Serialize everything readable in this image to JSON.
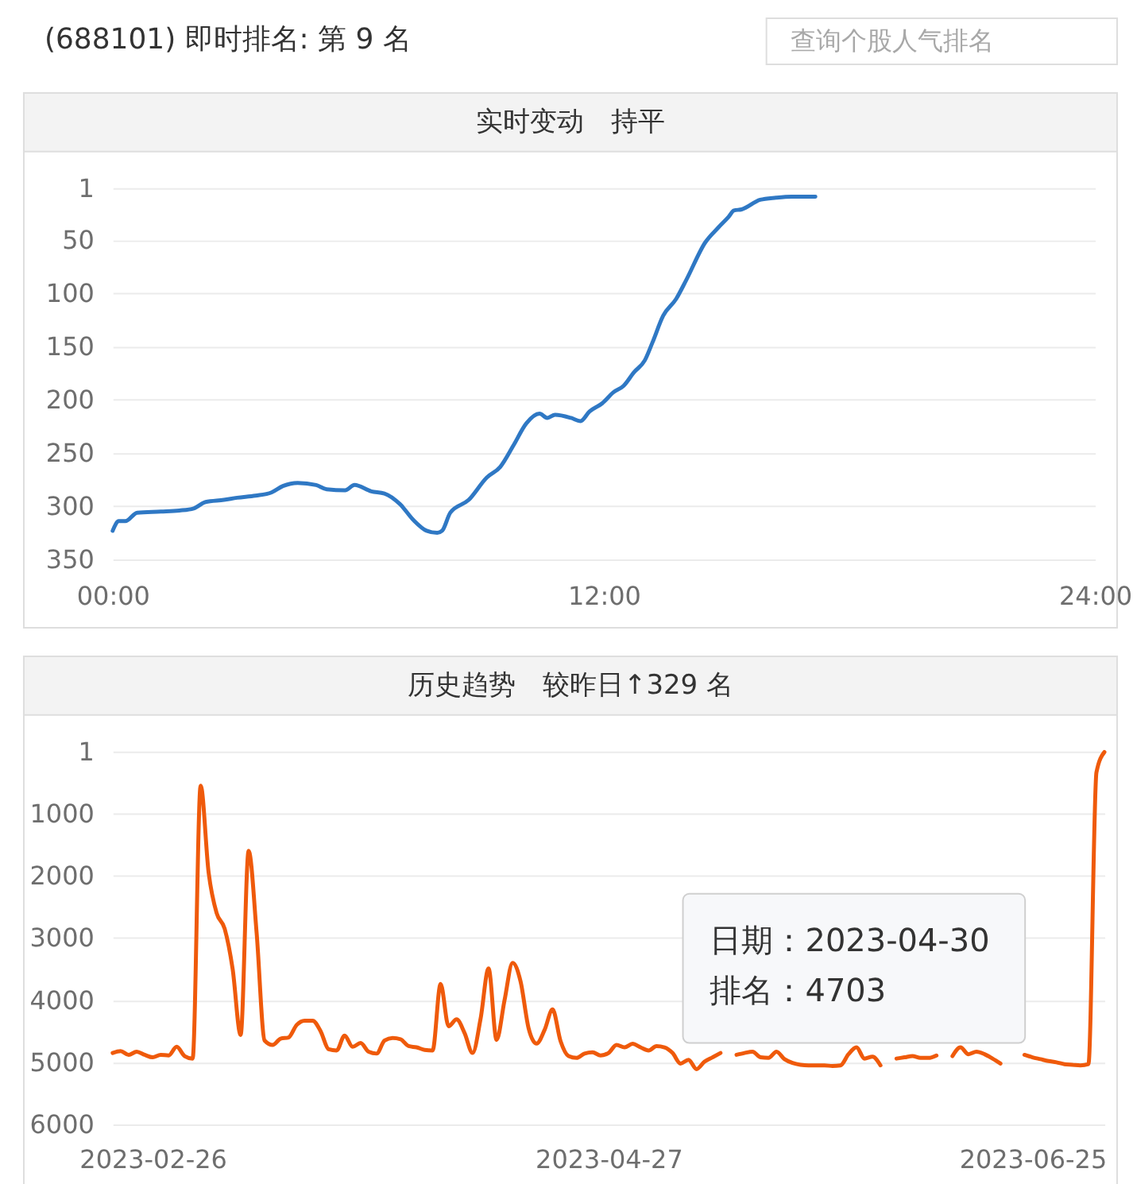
{
  "chart_data": [
    {
      "type": "other",
      "title": "(688101) 即时排名: 第 9 名",
      "annotations": [
        "查询个股人气排名"
      ]
    },
    {
      "type": "line",
      "title": "实时变动　持平",
      "x": [
        0,
        0.15,
        0.31,
        0.6,
        1.18,
        1.63,
        1.98,
        2.27,
        2.72,
        3.04,
        3.49,
        3.88,
        4.16,
        4.52,
        4.97,
        5.23,
        5.68,
        5.91,
        6.32,
        6.64,
        7.02,
        7.35,
        7.67,
        7.93,
        8.05,
        8.25,
        8.7,
        9.14,
        9.47,
        9.79,
        10.11,
        10.43,
        10.62,
        10.81,
        11.2,
        11.43,
        11.65,
        11.97,
        12.23,
        12.48,
        12.74,
        13.0,
        13.19,
        13.45,
        13.77,
        14.02,
        14.48,
        14.8,
        15.05,
        15.18,
        15.37,
        15.82,
        16.21,
        16.59,
        17.17
      ],
      "series": [
        {
          "color": "#2f78c4",
          "values": [
            323,
            314,
            314,
            306,
            305,
            304,
            302,
            296,
            294,
            292,
            290,
            287,
            281,
            278,
            280,
            284,
            285,
            280,
            286,
            288,
            298,
            313,
            323,
            325,
            323,
            306,
            294,
            273,
            263,
            243,
            222,
            213,
            217,
            214,
            217,
            220,
            211,
            203,
            193,
            187,
            174,
            163,
            146,
            121,
            105,
            87,
            52,
            38,
            28,
            22,
            21,
            12,
            10,
            9,
            9
          ]
        }
      ],
      "xlim": [
        0,
        24
      ],
      "xticks": [
        {
          "value": 0,
          "label": "00:00"
        },
        {
          "value": 12,
          "label": "12:00"
        },
        {
          "value": 24,
          "label": "24:00"
        }
      ],
      "ylim": [
        350,
        1
      ],
      "yticks": [
        1,
        50,
        100,
        150,
        200,
        250,
        300,
        350
      ],
      "grid": "y"
    },
    {
      "type": "line",
      "title": "历史趋势　较昨日↑329 名",
      "categories": [
        null,
        null,
        null,
        null,
        null,
        "2023-02-26",
        null,
        null,
        null,
        null,
        null,
        null,
        null,
        null,
        null,
        null,
        null,
        null,
        null,
        null,
        null,
        null,
        null,
        null,
        null,
        null,
        null,
        null,
        null,
        null,
        null,
        null,
        null,
        null,
        null,
        null,
        null,
        null,
        null,
        null,
        null,
        null,
        null,
        null,
        null,
        null,
        null,
        null,
        null,
        null,
        null,
        null,
        null,
        null,
        null,
        null,
        null,
        null,
        null,
        null,
        null,
        null,
        "2023-04-27",
        null,
        null,
        null,
        null,
        null,
        null,
        null,
        null,
        null,
        null,
        null,
        null,
        null,
        null,
        null,
        null,
        null,
        null,
        null,
        null,
        null,
        null,
        null,
        null,
        null,
        null,
        null,
        null,
        null,
        null,
        null,
        null,
        null,
        null,
        null,
        null,
        null,
        null,
        null,
        null,
        null,
        null,
        null,
        null,
        null,
        null,
        null,
        null,
        null,
        null,
        null,
        null,
        "2023-06-25",
        null,
        null,
        null,
        null,
        null,
        null,
        null,
        null,
        null
      ],
      "series": [
        {
          "color": "#ef5a0b",
          "values": [
            4850,
            4820,
            4880,
            4830,
            4880,
            4920,
            4880,
            4890,
            4750,
            4900,
            4940,
            550,
            1950,
            2600,
            2850,
            3500,
            4560,
            1600,
            2920,
            4650,
            4720,
            4620,
            4600,
            4400,
            4330,
            4330,
            4500,
            4790,
            4810,
            4570,
            4750,
            4690,
            4830,
            4860,
            4650,
            4610,
            4630,
            4740,
            4760,
            4800,
            4810,
            3740,
            4420,
            4310,
            4530,
            4850,
            4300,
            3490,
            4640,
            4000,
            3400,
            3700,
            4450,
            4700,
            4480,
            4150,
            4660,
            4900,
            4930,
            4860,
            4840,
            4890,
            4850,
            4720,
            4760,
            4703,
            4760,
            4810,
            4740,
            4760,
            4850,
            5020,
            4960,
            5110,
            4990,
            4920,
            4850,
            null,
            4880,
            4850,
            4830,
            4920,
            4930,
            4830,
            4950,
            5010,
            5040,
            5050,
            5050,
            5050,
            5060,
            5050,
            4870,
            4760,
            4940,
            4910,
            5050,
            null,
            4940,
            4920,
            4900,
            4930,
            4930,
            4890,
            null,
            4900,
            4760,
            4870,
            4830,
            4870,
            4940,
            5020,
            null,
            null,
            4880,
            4920,
            4950,
            4980,
            5000,
            5030,
            5040,
            5050,
            5030,
            338,
            9
          ]
        }
      ],
      "ylim": [
        6000,
        1
      ],
      "yticks": [
        1,
        1000,
        2000,
        3000,
        4000,
        5000,
        6000
      ],
      "grid": "y",
      "annotations": [
        "日期：2023-04-30",
        "排名：4703"
      ]
    }
  ]
}
